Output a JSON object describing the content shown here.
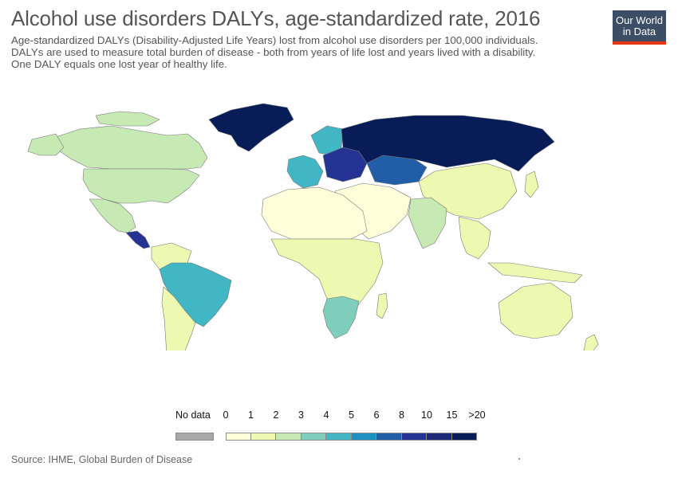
{
  "header": {
    "title": "Alcohol use disorders DALYs, age-standardized rate, 2016",
    "subtitle_lines": [
      "Age-standardized DALYs (Disability-Adjusted Life Years) lost from alcohol use disorders per 100,000 individuals.",
      "DALYs are used to measure total burden of disease - both from years of life lost and years lived with a disability.",
      "One DALY equals one lost year of healthy life."
    ]
  },
  "logo": {
    "line1": "Our World",
    "line2": "in Data"
  },
  "legend": {
    "no_data_label": "No data",
    "no_data_color": "#a8a8a8",
    "ticks": [
      "0",
      "1",
      "2",
      "3",
      "4",
      "5",
      "6",
      "8",
      "10",
      "15",
      ">20"
    ],
    "bin_colors": [
      "#ffffd9",
      "#edf8b1",
      "#c7e9b4",
      "#7fcdbb",
      "#41b6c4",
      "#1d91c0",
      "#225ea8",
      "#253494",
      "#1c2878",
      "#081d58"
    ]
  },
  "footer": {
    "source": "Source: IHME, Global Burden of Disease"
  },
  "regions": [
    {
      "name": "Greenland",
      "color": "#081d58"
    },
    {
      "name": "Canada",
      "color": "#c7e9b4"
    },
    {
      "name": "United States",
      "color": "#c7e9b4"
    },
    {
      "name": "Mexico",
      "color": "#c7e9b4"
    },
    {
      "name": "Central America",
      "color": "#253494"
    },
    {
      "name": "Brazil",
      "color": "#41b6c4"
    },
    {
      "name": "Southern South America",
      "color": "#edf8b1"
    },
    {
      "name": "Western Europe",
      "color": "#41b6c4"
    },
    {
      "name": "Eastern Europe",
      "color": "#253494"
    },
    {
      "name": "Russia",
      "color": "#081d58"
    },
    {
      "name": "Kazakhstan",
      "color": "#225ea8"
    },
    {
      "name": "China",
      "color": "#edf8b1"
    },
    {
      "name": "India",
      "color": "#c7e9b4"
    },
    {
      "name": "North Africa and Middle East",
      "color": "#ffffd9"
    },
    {
      "name": "Sub-Saharan Africa",
      "color": "#edf8b1"
    },
    {
      "name": "Southern Africa",
      "color": "#7fcdbb"
    },
    {
      "name": "Australia",
      "color": "#edf8b1"
    },
    {
      "name": "Southeast Asia",
      "color": "#edf8b1"
    }
  ]
}
